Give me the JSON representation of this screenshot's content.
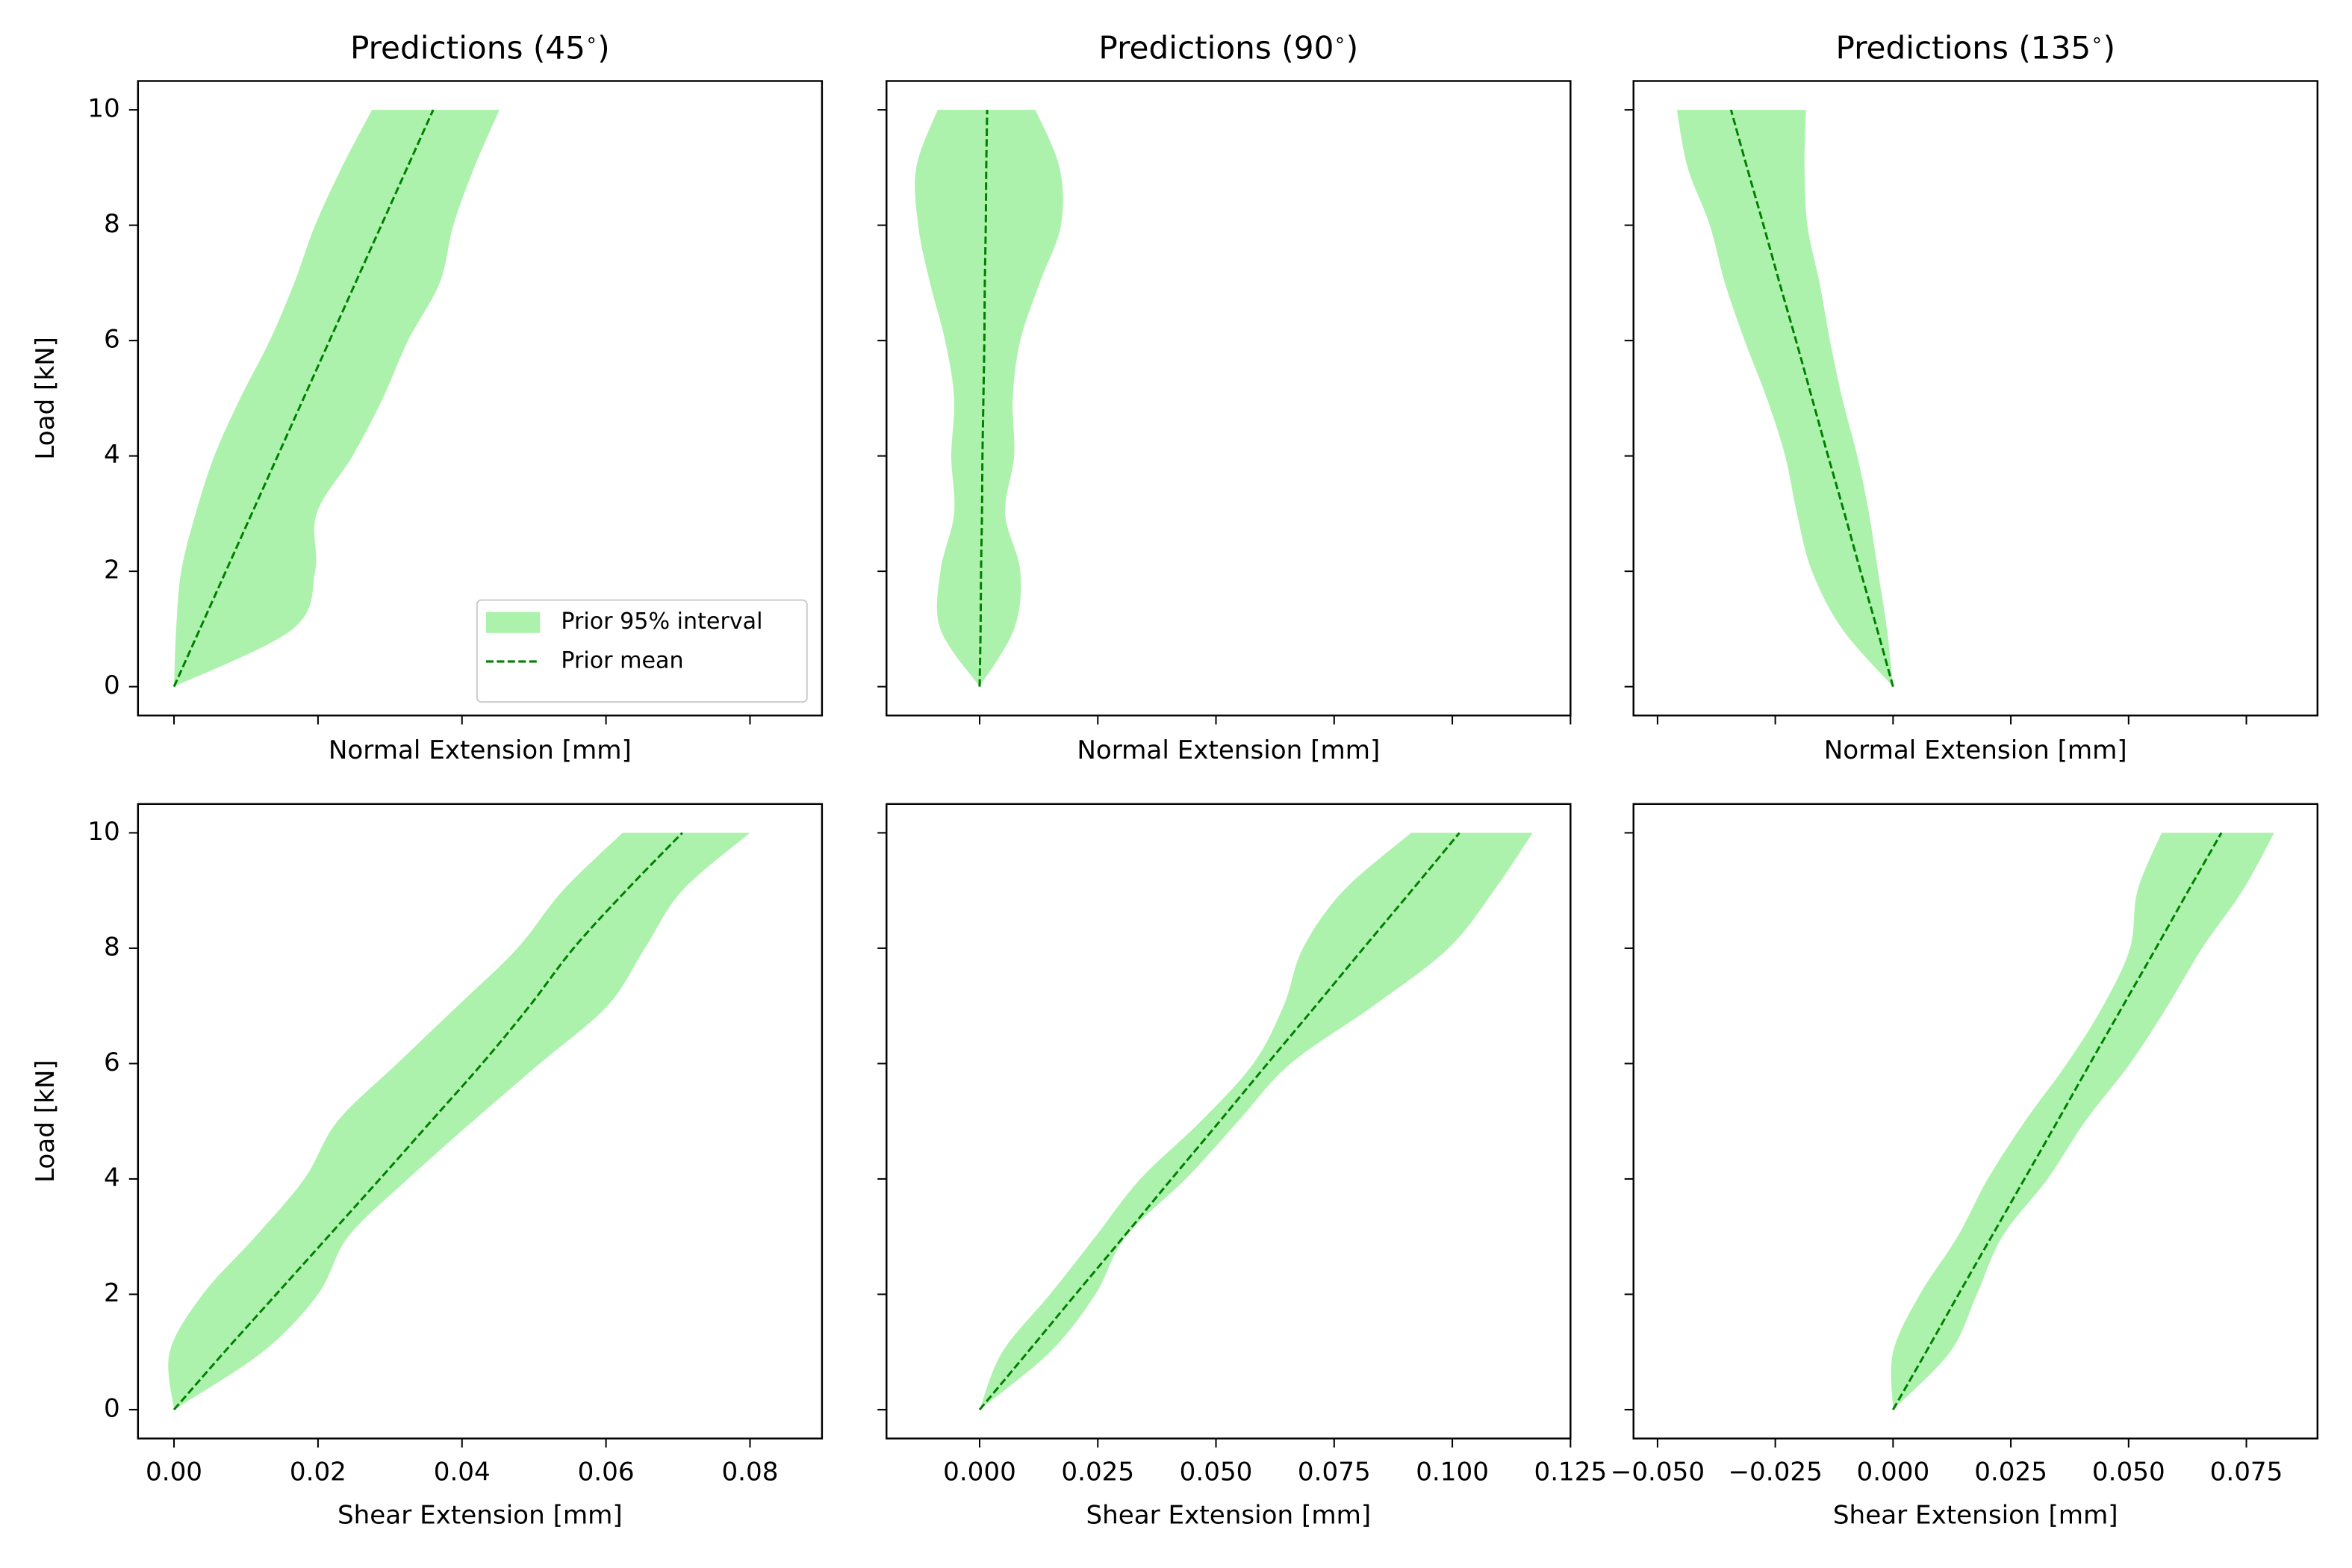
{
  "chart_data": [
    {
      "type": "line",
      "title": "Predictions (45$^\\circ$)",
      "xlabel": "Normal Extension [mm]",
      "ylabel": "Load [kN]",
      "load": [
        0,
        1,
        2,
        3,
        4,
        5,
        6,
        7,
        8,
        9,
        10
      ],
      "series": [
        {
          "name": "Prior 95% interval",
          "color": "#90ee90",
          "alpha": 0.75,
          "lower": [
            0,
            0.0003,
            0.001,
            0.003,
            0.0056,
            0.0092,
            0.0133,
            0.0167,
            0.0196,
            0.0233,
            0.0275
          ],
          "upper": [
            0,
            0.0165,
            0.0196,
            0.0198,
            0.0248,
            0.029,
            0.0325,
            0.0369,
            0.0388,
            0.0417,
            0.0452
          ]
        },
        {
          "name": "Prior mean",
          "color": "green",
          "dashed": true,
          "values": [
            0,
            0.0036,
            0.0072,
            0.0108,
            0.0144,
            0.018,
            0.0216,
            0.0252,
            0.0288,
            0.0324,
            0.036
          ]
        }
      ],
      "xlim": [
        -0.005,
        0.09
      ],
      "ylim": [
        -0.5,
        10.5
      ],
      "xticks": [
        0,
        0.02,
        0.04,
        0.06,
        0.08
      ],
      "yticks": [
        0,
        2,
        4,
        6,
        8,
        10
      ],
      "xtick_labels": false,
      "ytick_labels": true,
      "legend": "lower right"
    },
    {
      "type": "line",
      "title": "Predictions (90$^\\circ$)",
      "xlabel": "Normal Extension [mm]",
      "load": [
        0,
        1,
        2,
        3,
        4,
        5,
        6,
        7,
        8,
        9,
        10
      ],
      "series": [
        {
          "color": "#90ee90",
          "alpha": 0.75,
          "lower": [
            0,
            -0.0083,
            -0.0083,
            -0.0054,
            -0.006,
            -0.0054,
            -0.0073,
            -0.0105,
            -0.013,
            -0.0134,
            -0.0089
          ],
          "upper": [
            0,
            0.0073,
            0.0086,
            0.0054,
            0.0073,
            0.007,
            0.0086,
            0.0127,
            0.0172,
            0.0169,
            0.0118
          ]
        },
        {
          "color": "green",
          "dashed": true,
          "values": [
            0,
            0.0002,
            0.0003,
            0.0005,
            0.0006,
            0.0008,
            0.001,
            0.0011,
            0.0013,
            0.0014,
            0.0016
          ]
        }
      ],
      "xlim": [
        -0.0197,
        0.125
      ],
      "ylim": [
        -0.5,
        10.5
      ],
      "xticks": [
        0,
        0.025,
        0.05,
        0.075,
        0.1,
        0.125
      ],
      "yticks": [
        0,
        2,
        4,
        6,
        8,
        10
      ],
      "xtick_labels": false,
      "ytick_labels": false
    },
    {
      "type": "line",
      "title": "Predictions (135$^\\circ$)",
      "xlabel": "Normal Extension [mm]",
      "load": [
        0,
        1,
        2,
        3,
        4,
        5,
        6,
        7,
        8,
        9,
        10
      ],
      "series": [
        {
          "color": "#90ee90",
          "alpha": 0.75,
          "lower": [
            0,
            -0.0108,
            -0.0172,
            -0.0204,
            -0.0229,
            -0.0268,
            -0.0315,
            -0.0357,
            -0.0389,
            -0.0436,
            -0.0459
          ],
          "upper": [
            0,
            -0.0013,
            -0.0032,
            -0.0051,
            -0.0076,
            -0.0108,
            -0.0134,
            -0.0156,
            -0.0182,
            -0.0188,
            -0.0185
          ]
        },
        {
          "color": "green",
          "dashed": true,
          "values": [
            0,
            -0.0034,
            -0.0069,
            -0.0103,
            -0.0138,
            -0.0172,
            -0.0206,
            -0.0241,
            -0.0275,
            -0.031,
            -0.0344
          ]
        }
      ],
      "xlim": [
        -0.0551,
        0.0901
      ],
      "ylim": [
        -0.5,
        10.5
      ],
      "xticks": [
        -0.05,
        -0.025,
        0,
        0.025,
        0.05,
        0.075
      ],
      "yticks": [
        0,
        2,
        4,
        6,
        8,
        10
      ],
      "xtick_labels": false,
      "ytick_labels": false
    },
    {
      "type": "line",
      "xlabel": "Shear Extension [mm]",
      "ylabel": "Load [kN]",
      "load": [
        0,
        1,
        2,
        3,
        4,
        5,
        6,
        7,
        8,
        9,
        10
      ],
      "series": [
        {
          "color": "#90ee90",
          "alpha": 0.75,
          "lower": [
            0,
            -0.0006,
            0.004,
            0.0113,
            0.0181,
            0.0227,
            0.031,
            0.0394,
            0.0477,
            0.054,
            0.0623
          ],
          "upper": [
            0,
            0.0123,
            0.02,
            0.0242,
            0.0325,
            0.0415,
            0.0508,
            0.0602,
            0.0654,
            0.0706,
            0.08
          ]
        },
        {
          "color": "green",
          "dashed": true,
          "values": [
            0,
            0.007,
            0.0142,
            0.0214,
            0.0286,
            0.0357,
            0.0428,
            0.0494,
            0.0555,
            0.0628,
            0.0706
          ]
        }
      ],
      "xlim": [
        -0.005,
        0.09
      ],
      "ylim": [
        -0.5,
        10.5
      ],
      "xticks": [
        {
          "value": 0,
          "label": "0.00"
        },
        0.02,
        0.04,
        0.06,
        0.08
      ],
      "yticks": [
        0,
        2,
        4,
        6,
        8,
        10
      ],
      "xtick_labels": true,
      "ytick_labels": true
    },
    {
      "type": "line",
      "xlabel": "Shear Extension [mm]",
      "load": [
        0,
        1,
        2,
        3,
        4,
        5,
        6,
        7,
        8,
        9,
        10
      ],
      "series": [
        {
          "color": "#90ee90",
          "alpha": 0.75,
          "lower": [
            0,
            0.0048,
            0.0149,
            0.0245,
            0.034,
            0.0468,
            0.0579,
            0.0643,
            0.0684,
            0.077,
            0.0913
          ],
          "upper": [
            0,
            0.0149,
            0.0245,
            0.0309,
            0.0436,
            0.0547,
            0.0658,
            0.0833,
            0.0992,
            0.1088,
            0.117
          ]
        },
        {
          "color": "green",
          "dashed": true,
          "values": [
            0,
            0.0102,
            0.0203,
            0.0305,
            0.0406,
            0.0508,
            0.0609,
            0.0711,
            0.0812,
            0.0914,
            0.1015
          ]
        }
      ],
      "xlim": [
        -0.0197,
        0.125
      ],
      "ylim": [
        -0.5,
        10.5
      ],
      "xticks": [
        {
          "value": 0,
          "label": "0.000"
        },
        0.025,
        {
          "value": 0.05,
          "label": "0.050"
        },
        0.075,
        {
          "value": 0.1,
          "label": "0.100"
        },
        0.125
      ],
      "yticks": [
        0,
        2,
        4,
        6,
        8,
        10
      ],
      "xtick_labels": true,
      "ytick_labels": false
    },
    {
      "type": "line",
      "xlabel": "Shear Extension [mm]",
      "load": [
        0,
        1,
        2,
        3,
        4,
        5,
        6,
        7,
        8,
        9,
        10
      ],
      "series": [
        {
          "color": "#90ee90",
          "alpha": 0.75,
          "lower": [
            0,
            0,
            0.0057,
            0.0137,
            0.0201,
            0.028,
            0.0369,
            0.0446,
            0.0503,
            0.0519,
            0.057
          ],
          "upper": [
            0,
            0.0121,
            0.0178,
            0.0232,
            0.0328,
            0.0408,
            0.0503,
            0.0583,
            0.0656,
            0.0742,
            0.0809
          ]
        },
        {
          "color": "green",
          "dashed": true,
          "values": [
            0,
            0.007,
            0.0139,
            0.0209,
            0.0279,
            0.0349,
            0.0418,
            0.0488,
            0.0558,
            0.0627,
            0.0697
          ]
        }
      ],
      "xlim": [
        -0.0551,
        0.0901
      ],
      "ylim": [
        -0.5,
        10.5
      ],
      "xticks": [
        {
          "value": -0.05,
          "label": "−0.050"
        },
        {
          "value": -0.025,
          "label": "−0.025"
        },
        {
          "value": 0,
          "label": "0.000"
        },
        0.025,
        {
          "value": 0.05,
          "label": "0.050"
        },
        0.075
      ],
      "yticks": [
        0,
        2,
        4,
        6,
        8,
        10
      ],
      "xtick_labels": true,
      "ytick_labels": false
    }
  ]
}
